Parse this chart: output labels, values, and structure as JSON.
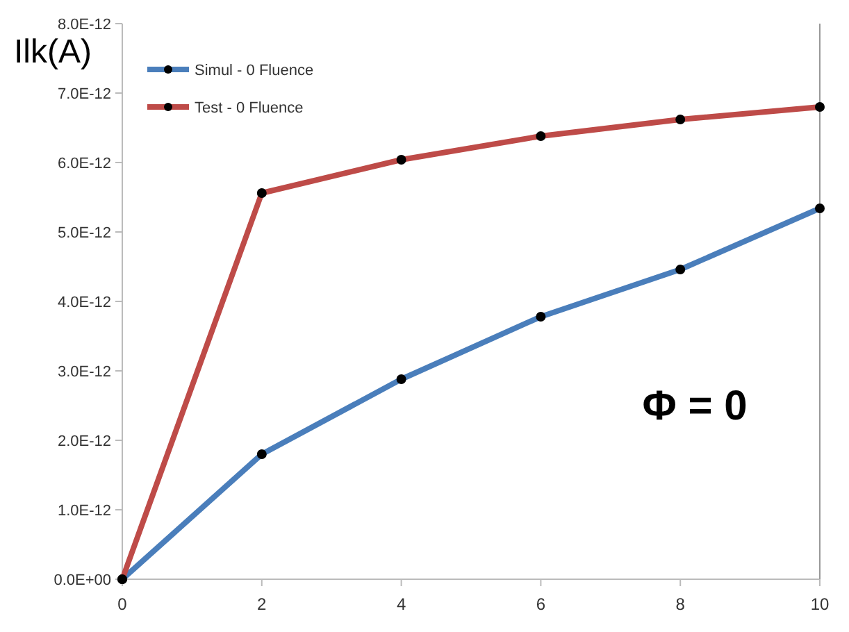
{
  "chart_data": {
    "type": "line",
    "ylabel": "Ilk(A)",
    "x": [
      0,
      2,
      4,
      6,
      8,
      10
    ],
    "series": [
      {
        "name": "Simul - 0 Fluence",
        "color": "#4a7ebb",
        "values": [
          0,
          1.8e-12,
          2.88e-12,
          3.78e-12,
          4.46e-12,
          5.34e-12
        ]
      },
      {
        "name": "Test - 0 Fluence",
        "color": "#be4b48",
        "values": [
          0,
          5.56e-12,
          6.04e-12,
          6.38e-12,
          6.62e-12,
          6.8e-12
        ]
      }
    ],
    "xlim": [
      0,
      10
    ],
    "xticks": [
      0,
      2,
      4,
      6,
      8,
      10
    ],
    "ylim": [
      0,
      8e-12
    ],
    "yticks": [
      {
        "value": 0,
        "label": "0.0E+00"
      },
      {
        "value": 1e-12,
        "label": "1.0E-12"
      },
      {
        "value": 2e-12,
        "label": "2.0E-12"
      },
      {
        "value": 3e-12,
        "label": "3.0E-12"
      },
      {
        "value": 4e-12,
        "label": "4.0E-12"
      },
      {
        "value": 5e-12,
        "label": "5.0E-12"
      },
      {
        "value": 6e-12,
        "label": "6.0E-12"
      },
      {
        "value": 7e-12,
        "label": "7.0E-12"
      },
      {
        "value": 8e-12,
        "label": "8.0E-12"
      }
    ],
    "annotations": [
      "Φ = 0"
    ],
    "legend": "top left",
    "marker": "circle",
    "line_style": "solid",
    "grid": false
  }
}
